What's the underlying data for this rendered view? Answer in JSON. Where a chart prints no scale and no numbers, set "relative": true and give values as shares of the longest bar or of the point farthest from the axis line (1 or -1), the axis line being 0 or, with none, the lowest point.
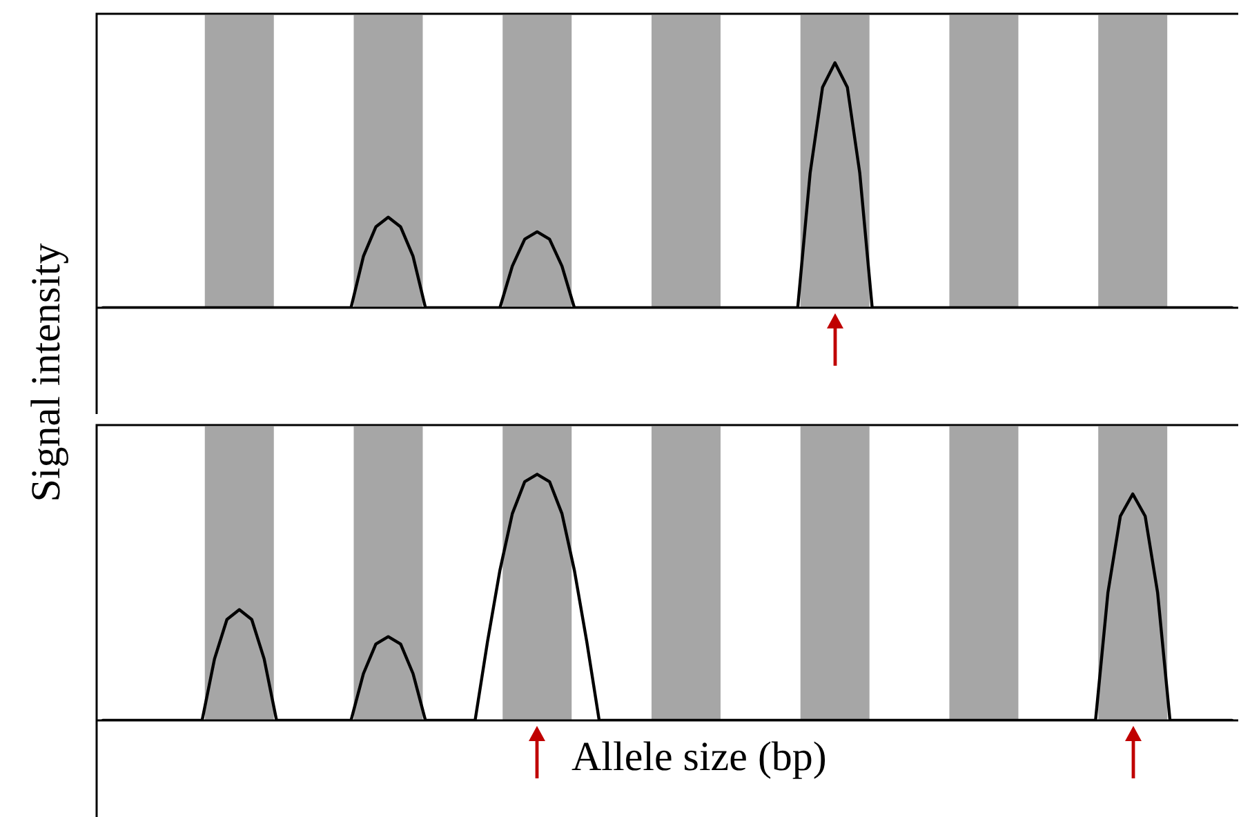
{
  "chart_data": [
    {
      "type": "line",
      "relative": true,
      "ylabel": "Signal intensity",
      "tick_labels": false,
      "grid": false,
      "legend": false,
      "marker": "none",
      "line_style": "solid",
      "categories": [
        null,
        null,
        null,
        null,
        null,
        null,
        null,
        null,
        null,
        null,
        null,
        null,
        null,
        null,
        null,
        null,
        null,
        null,
        null,
        null,
        null,
        null,
        null,
        null,
        null,
        null,
        null,
        null,
        null,
        null,
        null,
        null,
        null,
        null,
        null,
        null,
        null,
        null,
        null,
        null,
        null,
        null,
        null,
        null,
        null,
        null,
        null,
        null,
        null,
        null,
        null,
        null,
        null,
        null,
        null,
        null,
        null,
        null,
        null,
        null,
        null,
        null,
        null,
        null,
        null,
        null,
        null,
        null,
        null,
        null,
        null,
        null,
        null,
        null,
        null,
        null,
        null,
        null,
        null,
        null,
        null,
        null,
        null,
        null,
        null,
        null,
        null,
        null,
        null,
        null,
        null,
        null
      ],
      "series": [
        {
          "color": "#000000",
          "values": [
            0,
            0,
            0,
            0,
            0,
            0,
            0,
            0,
            0,
            0,
            0,
            0,
            0,
            0,
            0,
            0,
            0,
            0,
            0,
            0,
            0,
            0.21,
            0.33,
            0.37,
            0.33,
            0.21,
            0,
            0,
            0,
            0,
            0,
            0,
            0,
            0.17,
            0.28,
            0.31,
            0.28,
            0.17,
            0,
            0,
            0,
            0,
            0,
            0,
            0,
            0,
            0,
            0,
            0,
            0,
            0,
            0,
            0,
            0,
            0,
            0,
            0,
            0.55,
            0.9,
            1,
            0.9,
            0.55,
            0,
            0,
            0,
            0,
            0,
            0,
            0,
            0,
            0,
            0,
            0,
            0,
            0,
            0,
            0,
            0,
            0,
            0,
            0,
            0,
            0,
            0,
            0,
            0,
            0,
            0,
            0,
            0,
            0,
            0
          ]
        }
      ]
    },
    {
      "type": "line",
      "relative": true,
      "xlabel": "Allele size (bp)",
      "tick_labels": false,
      "grid": false,
      "legend": false,
      "marker": "none",
      "line_style": "solid",
      "categories": [
        null,
        null,
        null,
        null,
        null,
        null,
        null,
        null,
        null,
        null,
        null,
        null,
        null,
        null,
        null,
        null,
        null,
        null,
        null,
        null,
        null,
        null,
        null,
        null,
        null,
        null,
        null,
        null,
        null,
        null,
        null,
        null,
        null,
        null,
        null,
        null,
        null,
        null,
        null,
        null,
        null,
        null,
        null,
        null,
        null,
        null,
        null,
        null,
        null,
        null,
        null,
        null,
        null,
        null,
        null,
        null,
        null,
        null,
        null,
        null,
        null,
        null,
        null,
        null,
        null,
        null,
        null,
        null,
        null,
        null,
        null,
        null,
        null,
        null,
        null,
        null,
        null,
        null,
        null,
        null,
        null,
        null,
        null,
        null,
        null,
        null,
        null,
        null,
        null,
        null,
        null,
        null
      ],
      "series": [
        {
          "color": "#000000",
          "values": [
            0,
            0,
            0,
            0,
            0,
            0,
            0,
            0,
            0,
            0.25,
            0.41,
            0.45,
            0.41,
            0.25,
            0,
            0,
            0,
            0,
            0,
            0,
            0,
            0.19,
            0.31,
            0.34,
            0.31,
            0.19,
            0,
            0,
            0,
            0,
            0,
            0.32,
            0.61,
            0.84,
            0.97,
            1,
            0.97,
            0.84,
            0.61,
            0.32,
            0,
            0,
            0,
            0,
            0,
            0,
            0,
            0,
            0,
            0,
            0,
            0,
            0,
            0,
            0,
            0,
            0,
            0,
            0,
            0,
            0,
            0,
            0,
            0,
            0,
            0,
            0,
            0,
            0,
            0,
            0,
            0,
            0,
            0,
            0,
            0,
            0,
            0,
            0,
            0,
            0,
            0.52,
            0.83,
            0.92,
            0.83,
            0.52,
            0,
            0,
            0,
            0,
            0,
            0
          ]
        }
      ]
    }
  ]
}
